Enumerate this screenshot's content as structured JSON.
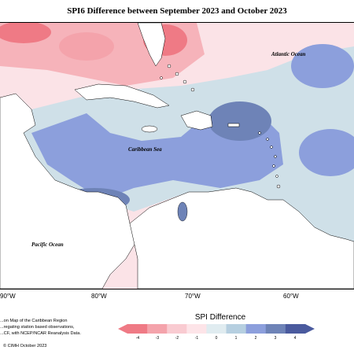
{
  "title": "SPI6 Difference between September 2023 and October 2023",
  "labels": {
    "atlantic": "Atlantic Ocean",
    "caribbean": "Caribbean Sea",
    "pacific": "Pacific Ocean"
  },
  "longitudes": [
    "90°W",
    "80°W",
    "70°W",
    "60°W"
  ],
  "credit": {
    "line1": "...on Map of the Caribbean Region",
    "line2": "...regating station based observations,",
    "line3": "...CF, with NCEP/NCAR Reanalysis Data.",
    "line4": "© CIMH October 2023"
  },
  "legend": {
    "title": "SPI Difference",
    "ticks": [
      "-4",
      "-3",
      "-2",
      "-1",
      "0",
      "1",
      "2",
      "3",
      "4"
    ],
    "colors": [
      "#ef7a85",
      "#f4a3ab",
      "#f9cbd1",
      "#fde4e8",
      "#e0ecf0",
      "#b6cfe0",
      "#8c9fdc",
      "#6e83b7",
      "#4a5a9e"
    ]
  }
}
